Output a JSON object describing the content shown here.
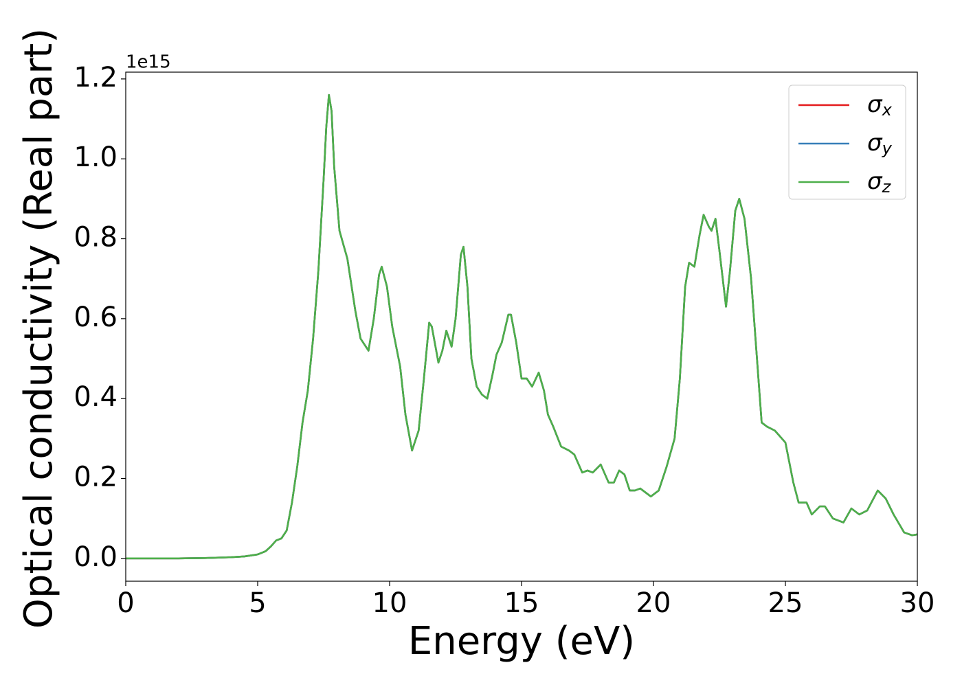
{
  "chart_data": {
    "type": "line",
    "xlabel": "Energy (eV)",
    "ylabel": "Optical conductivity (Real part)",
    "y_offset_label": "1e15",
    "x": [
      0,
      2,
      3,
      4,
      4.5,
      5,
      5.3,
      5.5,
      5.7,
      5.9,
      6.1,
      6.3,
      6.5,
      6.7,
      6.9,
      7.1,
      7.3,
      7.5,
      7.6,
      7.7,
      7.8,
      7.9,
      8.1,
      8.4,
      8.7,
      8.9,
      9.2,
      9.4,
      9.6,
      9.7,
      9.9,
      10.1,
      10.4,
      10.6,
      10.85,
      11.1,
      11.3,
      11.5,
      11.6,
      11.85,
      12.0,
      12.15,
      12.35,
      12.5,
      12.7,
      12.8,
      12.95,
      13.1,
      13.3,
      13.5,
      13.7,
      13.9,
      14.05,
      14.25,
      14.5,
      14.6,
      14.8,
      15.0,
      15.2,
      15.4,
      15.65,
      15.85,
      16.0,
      16.2,
      16.5,
      16.8,
      17.0,
      17.3,
      17.5,
      17.7,
      18.0,
      18.3,
      18.5,
      18.7,
      18.9,
      19.1,
      19.3,
      19.5,
      19.9,
      20.2,
      20.5,
      20.8,
      21.0,
      21.2,
      21.35,
      21.55,
      21.75,
      21.9,
      22.1,
      22.2,
      22.35,
      22.5,
      22.75,
      22.9,
      23.1,
      23.25,
      23.45,
      23.7,
      23.9,
      24.1,
      24.3,
      24.6,
      25.0,
      25.3,
      25.5,
      25.8,
      26.0,
      26.3,
      26.5,
      26.8,
      27.2,
      27.5,
      27.8,
      28.1,
      28.5,
      28.8,
      29.1,
      29.5,
      29.8,
      30
    ],
    "series": [
      {
        "name": "σx",
        "color": "#e41a1c",
        "values": [
          0,
          0,
          0.001,
          0.003,
          0.005,
          0.01,
          0.018,
          0.03,
          0.045,
          0.05,
          0.07,
          0.14,
          0.23,
          0.34,
          0.42,
          0.55,
          0.72,
          0.95,
          1.08,
          1.16,
          1.12,
          0.98,
          0.82,
          0.75,
          0.62,
          0.55,
          0.52,
          0.6,
          0.71,
          0.73,
          0.68,
          0.58,
          0.48,
          0.36,
          0.27,
          0.32,
          0.45,
          0.59,
          0.58,
          0.49,
          0.52,
          0.57,
          0.53,
          0.6,
          0.76,
          0.78,
          0.68,
          0.5,
          0.43,
          0.41,
          0.4,
          0.46,
          0.51,
          0.54,
          0.61,
          0.61,
          0.54,
          0.45,
          0.45,
          0.43,
          0.465,
          0.42,
          0.36,
          0.33,
          0.28,
          0.27,
          0.26,
          0.215,
          0.22,
          0.215,
          0.235,
          0.19,
          0.19,
          0.22,
          0.21,
          0.17,
          0.17,
          0.175,
          0.155,
          0.17,
          0.23,
          0.3,
          0.45,
          0.68,
          0.74,
          0.73,
          0.81,
          0.86,
          0.83,
          0.82,
          0.85,
          0.77,
          0.63,
          0.72,
          0.87,
          0.9,
          0.85,
          0.7,
          0.52,
          0.34,
          0.33,
          0.32,
          0.29,
          0.19,
          0.14,
          0.14,
          0.11,
          0.13,
          0.13,
          0.1,
          0.09,
          0.125,
          0.11,
          0.12,
          0.17,
          0.15,
          0.11,
          0.065,
          0.058,
          0.06
        ]
      },
      {
        "name": "σy",
        "color": "#377eb8",
        "values": [
          0,
          0,
          0.001,
          0.003,
          0.005,
          0.01,
          0.018,
          0.03,
          0.045,
          0.05,
          0.07,
          0.14,
          0.23,
          0.34,
          0.42,
          0.55,
          0.72,
          0.95,
          1.08,
          1.16,
          1.12,
          0.98,
          0.82,
          0.75,
          0.62,
          0.55,
          0.52,
          0.6,
          0.71,
          0.73,
          0.68,
          0.58,
          0.48,
          0.36,
          0.27,
          0.32,
          0.45,
          0.59,
          0.58,
          0.49,
          0.52,
          0.57,
          0.53,
          0.6,
          0.76,
          0.78,
          0.68,
          0.5,
          0.43,
          0.41,
          0.4,
          0.46,
          0.51,
          0.54,
          0.61,
          0.61,
          0.54,
          0.45,
          0.45,
          0.43,
          0.465,
          0.42,
          0.36,
          0.33,
          0.28,
          0.27,
          0.26,
          0.215,
          0.22,
          0.215,
          0.235,
          0.19,
          0.19,
          0.22,
          0.21,
          0.17,
          0.17,
          0.175,
          0.155,
          0.17,
          0.23,
          0.3,
          0.45,
          0.68,
          0.74,
          0.73,
          0.81,
          0.86,
          0.83,
          0.82,
          0.85,
          0.77,
          0.63,
          0.72,
          0.87,
          0.9,
          0.85,
          0.7,
          0.52,
          0.34,
          0.33,
          0.32,
          0.29,
          0.19,
          0.14,
          0.14,
          0.11,
          0.13,
          0.13,
          0.1,
          0.09,
          0.125,
          0.11,
          0.12,
          0.17,
          0.15,
          0.11,
          0.065,
          0.058,
          0.06
        ]
      },
      {
        "name": "σz",
        "color": "#4daf4a",
        "values": [
          0,
          0,
          0.001,
          0.003,
          0.005,
          0.01,
          0.018,
          0.03,
          0.045,
          0.05,
          0.07,
          0.14,
          0.23,
          0.34,
          0.42,
          0.55,
          0.72,
          0.95,
          1.08,
          1.16,
          1.12,
          0.98,
          0.82,
          0.75,
          0.62,
          0.55,
          0.52,
          0.6,
          0.71,
          0.73,
          0.68,
          0.58,
          0.48,
          0.36,
          0.27,
          0.32,
          0.45,
          0.59,
          0.58,
          0.49,
          0.52,
          0.57,
          0.53,
          0.6,
          0.76,
          0.78,
          0.68,
          0.5,
          0.43,
          0.41,
          0.4,
          0.46,
          0.51,
          0.54,
          0.61,
          0.61,
          0.54,
          0.45,
          0.45,
          0.43,
          0.465,
          0.42,
          0.36,
          0.33,
          0.28,
          0.27,
          0.26,
          0.215,
          0.22,
          0.215,
          0.235,
          0.19,
          0.19,
          0.22,
          0.21,
          0.17,
          0.17,
          0.175,
          0.155,
          0.17,
          0.23,
          0.3,
          0.45,
          0.68,
          0.74,
          0.73,
          0.81,
          0.86,
          0.83,
          0.82,
          0.85,
          0.77,
          0.63,
          0.72,
          0.87,
          0.9,
          0.85,
          0.7,
          0.52,
          0.34,
          0.33,
          0.32,
          0.29,
          0.19,
          0.14,
          0.14,
          0.11,
          0.13,
          0.13,
          0.1,
          0.09,
          0.125,
          0.11,
          0.12,
          0.17,
          0.15,
          0.11,
          0.065,
          0.058,
          0.06
        ]
      }
    ],
    "xlim": [
      0,
      30
    ],
    "xticks": [
      0,
      5,
      10,
      15,
      20,
      25,
      30
    ],
    "ylim": [
      -0.057,
      1.217
    ],
    "yticks": [
      {
        "value": 0,
        "label": "0.0"
      },
      0.2,
      0.4,
      0.6,
      0.8,
      {
        "value": 1,
        "label": "1.0"
      },
      1.2
    ],
    "grid": false,
    "legend": "upper right"
  }
}
